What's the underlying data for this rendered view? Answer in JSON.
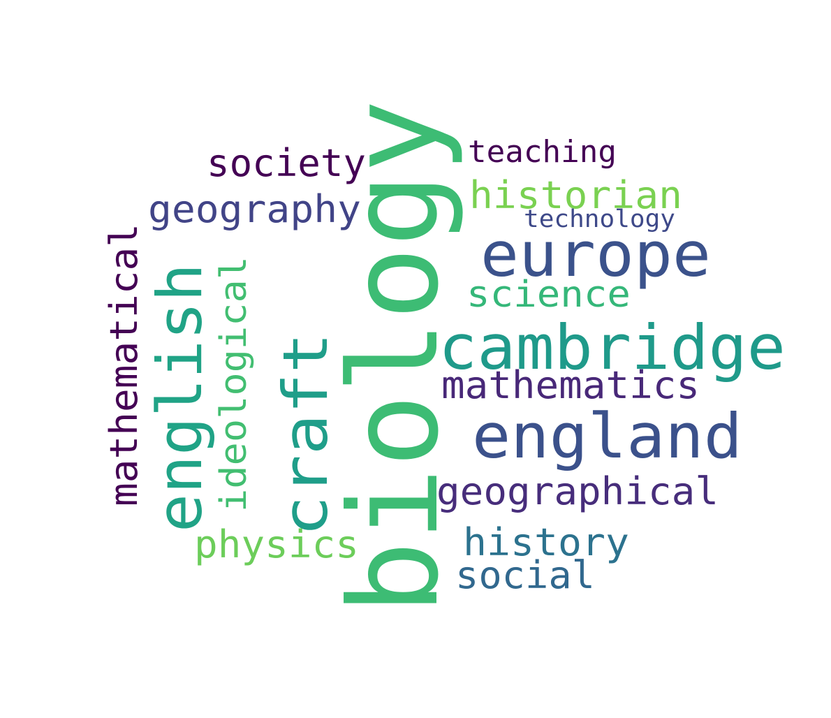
{
  "words": [
    {
      "text": "biology",
      "color": "#3dbc74"
    },
    {
      "text": "cambridge",
      "color": "#1f9a8a"
    },
    {
      "text": "england",
      "color": "#3b518b"
    },
    {
      "text": "europe",
      "color": "#3b528b"
    },
    {
      "text": "english",
      "color": "#20a386"
    },
    {
      "text": "craft",
      "color": "#1f9e89"
    },
    {
      "text": "mathematical",
      "color": "#440154"
    },
    {
      "text": "ideological",
      "color": "#42be71"
    },
    {
      "text": "society",
      "color": "#440154"
    },
    {
      "text": "geography",
      "color": "#414487"
    },
    {
      "text": "teaching",
      "color": "#440154"
    },
    {
      "text": "historian",
      "color": "#7ad151"
    },
    {
      "text": "technology",
      "color": "#3e4989"
    },
    {
      "text": "science",
      "color": "#35b779"
    },
    {
      "text": "mathematics",
      "color": "#482878"
    },
    {
      "text": "geographical",
      "color": "#472d7b"
    },
    {
      "text": "physics",
      "color": "#6ccd5a"
    },
    {
      "text": "history",
      "color": "#2c728e"
    },
    {
      "text": "social",
      "color": "#31688e"
    }
  ]
}
